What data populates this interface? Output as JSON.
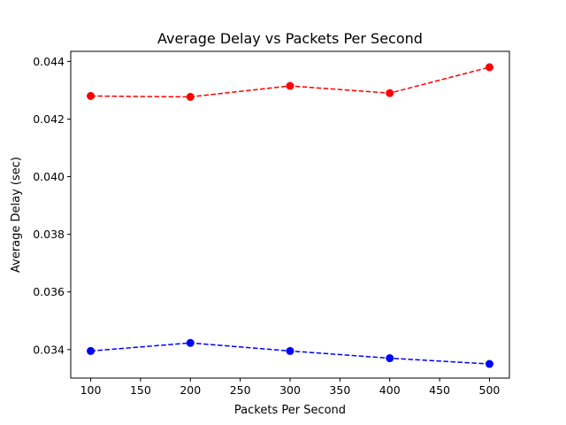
{
  "chart_data": {
    "type": "line",
    "title": "Average Delay vs Packets Per Second",
    "xlabel": "Packets Per Second",
    "ylabel": "Average Delay (sec)",
    "x": [
      100,
      200,
      300,
      400,
      500
    ],
    "xlim": [
      80,
      520
    ],
    "ylim": [
      0.03301,
      0.04435
    ],
    "xticks": [
      100,
      150,
      200,
      250,
      300,
      350,
      400,
      450,
      500
    ],
    "yticks": [
      0.034,
      0.036,
      0.038,
      0.04,
      0.042,
      0.044
    ],
    "ytick_labels": [
      "0.034",
      "0.036",
      "0.038",
      "0.040",
      "0.042",
      "0.044"
    ],
    "grid": false,
    "series": [
      {
        "color": "#ff0000",
        "line_style": "dashed",
        "marker": "circle",
        "values": [
          0.0428,
          0.04277,
          0.04315,
          0.0429,
          0.0438
        ]
      },
      {
        "color": "#0000ff",
        "line_style": "dashed",
        "marker": "circle",
        "values": [
          0.03395,
          0.03423,
          0.03395,
          0.0337,
          0.0335
        ]
      }
    ]
  }
}
